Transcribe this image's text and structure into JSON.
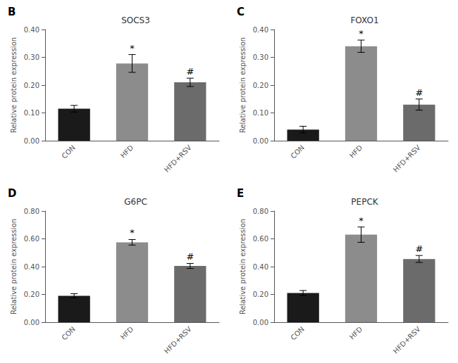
{
  "chart_data": [
    {
      "type": "bar",
      "title": "SOCS3",
      "annotations": [
        {
          "text": "B"
        },
        {
          "text": "*",
          "x": "HFD"
        },
        {
          "text": "#",
          "x": "HFD+RSV"
        }
      ],
      "categories": [
        "CON",
        "HFD",
        "HFD+RSV"
      ],
      "values": [
        0.115,
        0.278,
        0.21
      ],
      "errors": [
        0.012,
        0.032,
        0.015
      ],
      "colors": [
        "#1a1a1a",
        "#8c8c8c",
        "#6b6b6b"
      ],
      "ylabel": "Relative protein expression",
      "ylim": [
        0,
        0.4
      ],
      "yticks": [
        {
          "value": 0.0,
          "label": "0.00"
        },
        {
          "value": 0.1,
          "label": "0.10"
        },
        {
          "value": 0.2,
          "label": "0.20"
        },
        {
          "value": 0.3,
          "label": "0.30"
        },
        {
          "value": 0.4,
          "label": "0.40"
        }
      ],
      "grid": false
    },
    {
      "type": "bar",
      "title": "FOXO1",
      "annotations": [
        {
          "text": "C"
        },
        {
          "text": "*",
          "x": "HFD"
        },
        {
          "text": "#",
          "x": "HFD+RSV"
        }
      ],
      "categories": [
        "CON",
        "HFD",
        "HFD+RSV"
      ],
      "values": [
        0.04,
        0.34,
        0.13
      ],
      "errors": [
        0.012,
        0.022,
        0.02
      ],
      "colors": [
        "#1a1a1a",
        "#8c8c8c",
        "#6b6b6b"
      ],
      "ylabel": "Relative protein expression",
      "ylim": [
        0,
        0.4
      ],
      "yticks": [
        {
          "value": 0.0,
          "label": "0.00"
        },
        {
          "value": 0.1,
          "label": "0.10"
        },
        {
          "value": 0.2,
          "label": "0.20"
        },
        {
          "value": 0.3,
          "label": "0.30"
        },
        {
          "value": 0.4,
          "label": "0.40"
        }
      ],
      "grid": false
    },
    {
      "type": "bar",
      "title": "G6PC",
      "annotations": [
        {
          "text": "D"
        },
        {
          "text": "*",
          "x": "HFD"
        },
        {
          "text": "#",
          "x": "HFD+RSV"
        }
      ],
      "categories": [
        "CON",
        "HFD",
        "HFD+RSV"
      ],
      "values": [
        0.19,
        0.575,
        0.405
      ],
      "errors": [
        0.015,
        0.02,
        0.018
      ],
      "colors": [
        "#1a1a1a",
        "#8c8c8c",
        "#6b6b6b"
      ],
      "ylabel": "Relative protein expression",
      "ylim": [
        0,
        0.8
      ],
      "yticks": [
        {
          "value": 0.0,
          "label": "0.00"
        },
        {
          "value": 0.2,
          "label": "0.20"
        },
        {
          "value": 0.4,
          "label": "0.40"
        },
        {
          "value": 0.6,
          "label": "0.60"
        },
        {
          "value": 0.8,
          "label": "0.80"
        }
      ],
      "grid": false
    },
    {
      "type": "bar",
      "title": "PEPCK",
      "annotations": [
        {
          "text": "E"
        },
        {
          "text": "*",
          "x": "HFD"
        },
        {
          "text": "#",
          "x": "HFD+RSV"
        }
      ],
      "categories": [
        "CON",
        "HFD",
        "HFD+RSV"
      ],
      "values": [
        0.21,
        0.63,
        0.455
      ],
      "errors": [
        0.018,
        0.055,
        0.025
      ],
      "colors": [
        "#1a1a1a",
        "#8c8c8c",
        "#6b6b6b"
      ],
      "ylabel": "Relative protein expression",
      "ylim": [
        0,
        0.8
      ],
      "yticks": [
        {
          "value": 0.0,
          "label": "0.00"
        },
        {
          "value": 0.2,
          "label": "0.20"
        },
        {
          "value": 0.4,
          "label": "0.40"
        },
        {
          "value": 0.6,
          "label": "0.60"
        },
        {
          "value": 0.8,
          "label": "0.80"
        }
      ],
      "grid": false
    }
  ]
}
